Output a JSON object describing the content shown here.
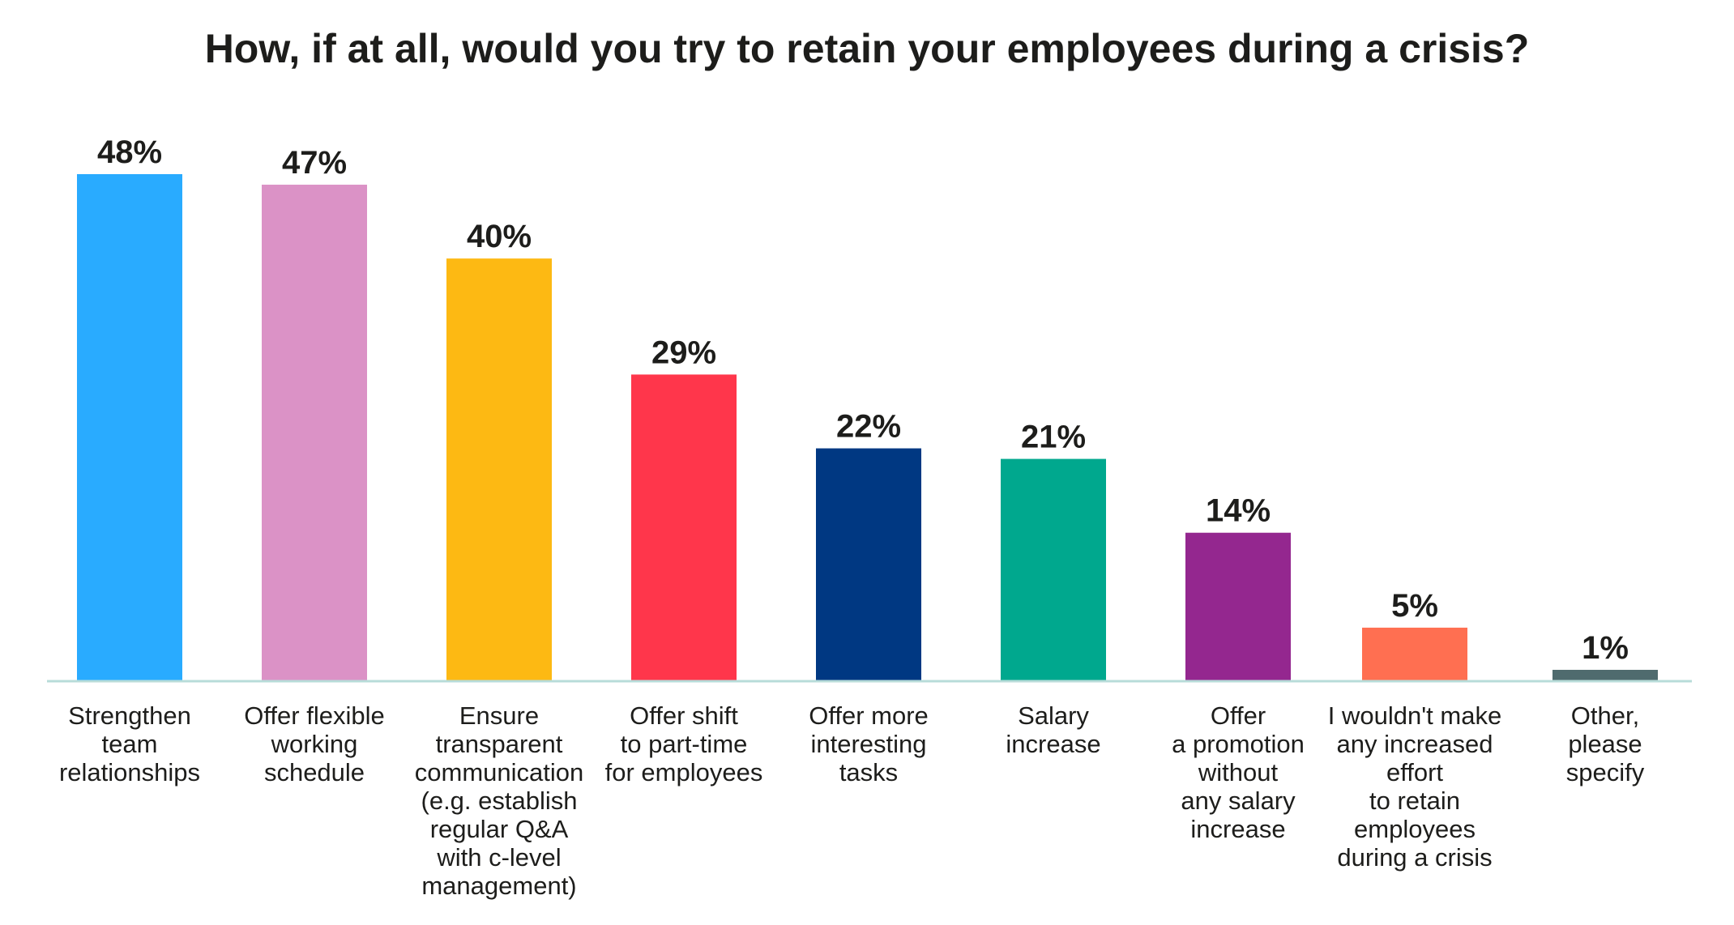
{
  "chart_data": {
    "type": "bar",
    "title": "How, if at all, would you try to retain your employees during a crisis?",
    "categories": [
      "Strengthen\nteam\nrelationships",
      "Offer flexible\nworking\nschedule",
      "Ensure\ntransparent\ncommunication\n(e.g. establish\nregular Q&A\nwith c-level\nmanagement)",
      "Offer shift\nto part-time\nfor employees",
      "Offer more\ninteresting\ntasks",
      "Salary\nincrease",
      "Offer\na promotion\nwithout\nany salary\nincrease",
      "I wouldn't make\nany increased\neffort\nto retain\nemployees\nduring a crisis",
      "Other,\nplease\nspecify"
    ],
    "values": [
      48,
      47,
      40,
      29,
      22,
      21,
      14,
      5,
      1
    ],
    "data_labels": [
      "48%",
      "47%",
      "40%",
      "29%",
      "22%",
      "21%",
      "14%",
      "5%",
      "1%"
    ],
    "colors": [
      "#29abff",
      "#db92c6",
      "#fdb913",
      "#ff364b",
      "#003882",
      "#00a88e",
      "#94278f",
      "#ff6f51",
      "#4f6b6e"
    ],
    "baseline_color": "#b8dcd9",
    "ylim": [
      0,
      48
    ],
    "grid": false,
    "legend": "none"
  }
}
